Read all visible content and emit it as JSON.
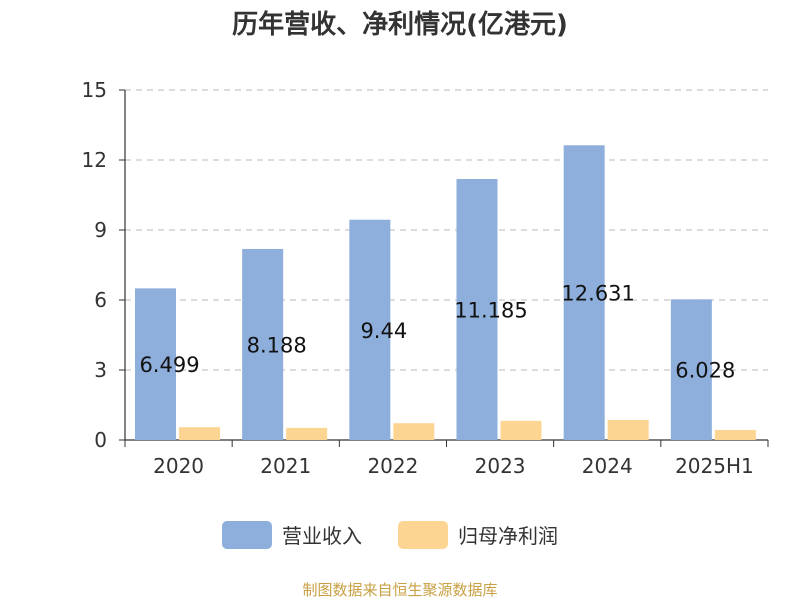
{
  "chart_data": {
    "type": "bar",
    "title": "历年营收、净利情况(亿港元)",
    "categories": [
      "2020",
      "2021",
      "2022",
      "2023",
      "2024",
      "2025H1"
    ],
    "series": [
      {
        "name": "营业收入",
        "color": "#8eaedb",
        "values": [
          6.499,
          8.188,
          9.44,
          11.185,
          12.631,
          6.028
        ]
      },
      {
        "name": "归母净利润",
        "color": "#fdd593",
        "values": [
          0.55,
          0.52,
          0.72,
          0.82,
          0.86,
          0.43
        ]
      }
    ],
    "data_labels": [
      "6.499",
      "8.188",
      "9.44",
      "11.185",
      "12.631",
      "6.028"
    ],
    "ylim": [
      0,
      15
    ],
    "yticks": [
      "0",
      "3",
      "6",
      "9",
      "12",
      "15"
    ],
    "ytick_values": [
      0,
      3,
      6,
      9,
      12,
      15
    ],
    "grid": true,
    "legend_position": "bottom"
  },
  "source": {
    "text": "制图数据来自恒生聚源数据库",
    "color": "#c8a043"
  }
}
